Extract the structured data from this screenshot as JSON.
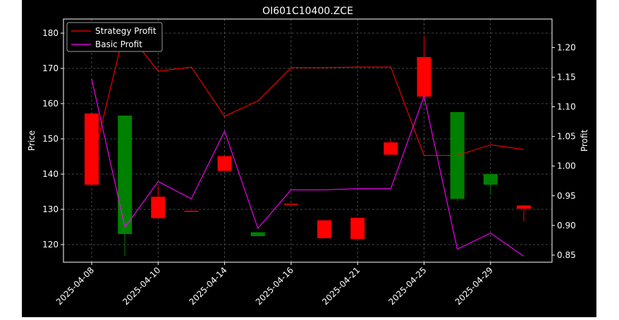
{
  "chart_data": {
    "type": "candlestick",
    "title": "OI601C10400.ZCE",
    "ylabel": "Price",
    "ylabel_right": "Profit",
    "ylim": [
      115,
      184
    ],
    "ylim_right": [
      0.838,
      1.248
    ],
    "yticks": [
      120,
      130,
      140,
      150,
      160,
      170,
      180
    ],
    "yticks_right": [
      0.85,
      0.9,
      0.95,
      1.0,
      1.05,
      1.1,
      1.15,
      1.2
    ],
    "xticks": [
      {
        "index": 0,
        "label": "2025-04-08"
      },
      {
        "index": 2,
        "label": "2025-04-10"
      },
      {
        "index": 4,
        "label": "2025-04-14"
      },
      {
        "index": 6,
        "label": "2025-04-16"
      },
      {
        "index": 8,
        "label": "2025-04-21"
      },
      {
        "index": 10,
        "label": "2025-04-25"
      },
      {
        "index": 12,
        "label": "2025-04-29"
      }
    ],
    "candles": [
      {
        "open": 137.0,
        "high": 157.2,
        "low": 137.0,
        "close": 157.2,
        "color": "#ff0000"
      },
      {
        "open": 156.6,
        "high": 156.6,
        "low": 116.8,
        "close": 123.0,
        "color": "#008000"
      },
      {
        "open": 127.5,
        "high": 136.5,
        "low": 127.5,
        "close": 133.6,
        "color": "#ff0000"
      },
      {
        "open": 129.3,
        "high": 129.6,
        "low": 129.3,
        "close": 129.6,
        "color": "#ff0000"
      },
      {
        "open": 140.9,
        "high": 145.1,
        "low": 140.9,
        "close": 145.1,
        "color": "#ff0000"
      },
      {
        "open": 123.5,
        "high": 123.5,
        "low": 122.3,
        "close": 122.4,
        "color": "#008000"
      },
      {
        "open": 131.3,
        "high": 131.6,
        "low": 131.3,
        "close": 131.6,
        "color": "#ff0000"
      },
      {
        "open": 121.8,
        "high": 126.9,
        "low": 121.8,
        "close": 126.9,
        "color": "#ff0000"
      },
      {
        "open": 121.6,
        "high": 127.6,
        "low": 121.6,
        "close": 127.6,
        "color": "#ff0000"
      },
      {
        "open": 145.5,
        "high": 149.8,
        "low": 145.5,
        "close": 149.0,
        "color": "#ff0000"
      },
      {
        "open": 162.0,
        "high": 179.3,
        "low": 162.0,
        "close": 173.2,
        "color": "#ff0000"
      },
      {
        "open": 157.6,
        "high": 157.6,
        "low": 132.3,
        "close": 133.0,
        "color": "#008000"
      },
      {
        "open": 140.0,
        "high": 140.0,
        "low": 134.2,
        "close": 137.0,
        "color": "#008000"
      },
      {
        "open": 130.2,
        "high": 131.1,
        "low": 126.5,
        "close": 131.1,
        "color": "#ff0000"
      }
    ],
    "series": [
      {
        "name": "Strategy Profit",
        "color": "#ff0000",
        "axis": "right",
        "values": [
          1.0,
          1.232,
          1.16,
          1.167,
          1.084,
          1.11,
          1.166,
          1.166,
          1.167,
          1.167,
          1.018,
          1.018,
          1.036,
          1.028
        ]
      },
      {
        "name": "Basic Profit",
        "color": "#ff00ff",
        "axis": "right",
        "values": [
          1.147,
          0.897,
          0.974,
          0.945,
          1.059,
          0.895,
          0.96,
          0.96,
          0.962,
          0.962,
          1.118,
          0.86,
          0.887,
          0.848
        ]
      }
    ],
    "legend": "top-left",
    "grid": true
  }
}
